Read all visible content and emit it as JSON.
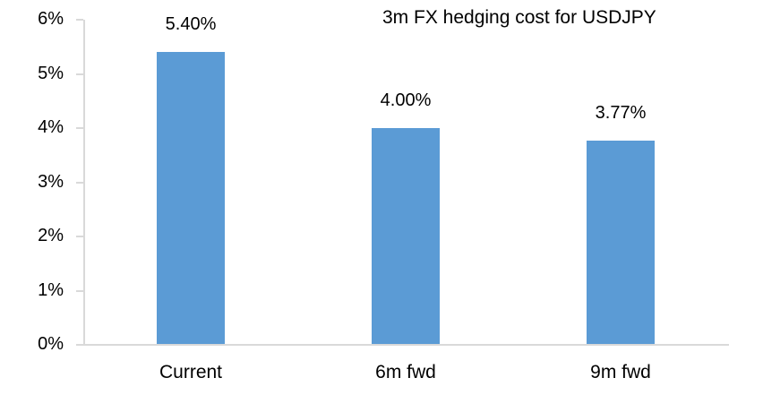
{
  "chart_data": {
    "type": "bar",
    "title": "3m FX hedging cost for USDJPY",
    "categories": [
      "Current",
      "6m fwd",
      "9m fwd"
    ],
    "values": [
      5.4,
      4.0,
      3.77
    ],
    "value_labels": [
      "5.40%",
      "4.00%",
      "3.77%"
    ],
    "xlabel": "",
    "ylabel": "",
    "ylim": [
      0,
      6
    ],
    "y_tick_labels": [
      "0%",
      "1%",
      "2%",
      "3%",
      "4%",
      "5%",
      "6%"
    ],
    "grid": false,
    "legend": "none",
    "bar_color": "#5b9bd5",
    "axis_color": "#d9d9d9",
    "text_color": "#000000"
  }
}
